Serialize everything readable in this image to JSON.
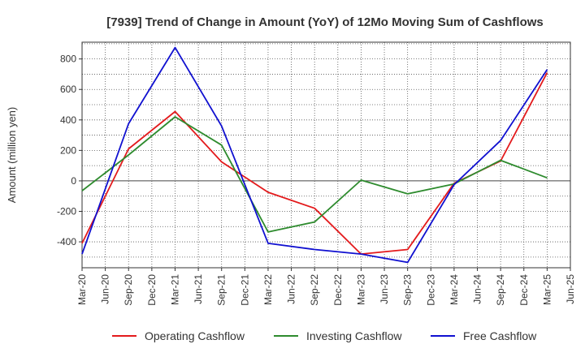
{
  "chart_data": {
    "type": "line",
    "title": "[7939]  Trend of Change in Amount (YoY) of 12Mo Moving Sum of Cashflows",
    "xlabel": "",
    "ylabel": "Amount (million yen)",
    "ylim": [
      -570,
      910
    ],
    "yticks": [
      -400,
      -200,
      0,
      200,
      400,
      600,
      800
    ],
    "ytick_labels": [
      "-400",
      "-200",
      "0",
      "200",
      "400",
      "600",
      "800"
    ],
    "categories": [
      "Mar-20",
      "Jun-20",
      "Sep-20",
      "Dec-20",
      "Mar-21",
      "Jun-21",
      "Sep-21",
      "Dec-21",
      "Mar-22",
      "Jun-22",
      "Sep-22",
      "Dec-22",
      "Mar-23",
      "Jun-23",
      "Sep-23",
      "Dec-23",
      "Mar-24",
      "Jun-24",
      "Sep-24",
      "Dec-24",
      "Mar-25",
      "Jun-25"
    ],
    "grid": true,
    "legend_position": "bottom",
    "series": [
      {
        "name": "Operating Cashflow",
        "color": "#e31a1c",
        "values": [
          -410,
          null,
          210,
          null,
          455,
          null,
          125,
          null,
          -75,
          null,
          -180,
          null,
          -480,
          null,
          -450,
          null,
          -15,
          null,
          130,
          null,
          710,
          null
        ]
      },
      {
        "name": "Investing Cashflow",
        "color": "#2e8b2e",
        "values": [
          -65,
          null,
          170,
          null,
          420,
          null,
          235,
          null,
          -335,
          null,
          -270,
          null,
          5,
          null,
          -85,
          null,
          -20,
          null,
          135,
          null,
          20,
          null
        ]
      },
      {
        "name": "Free Cashflow",
        "color": "#1010d0",
        "values": [
          -480,
          null,
          375,
          null,
          875,
          null,
          360,
          null,
          -410,
          null,
          -450,
          null,
          -480,
          null,
          -535,
          null,
          -25,
          null,
          265,
          null,
          730,
          null
        ]
      }
    ]
  }
}
